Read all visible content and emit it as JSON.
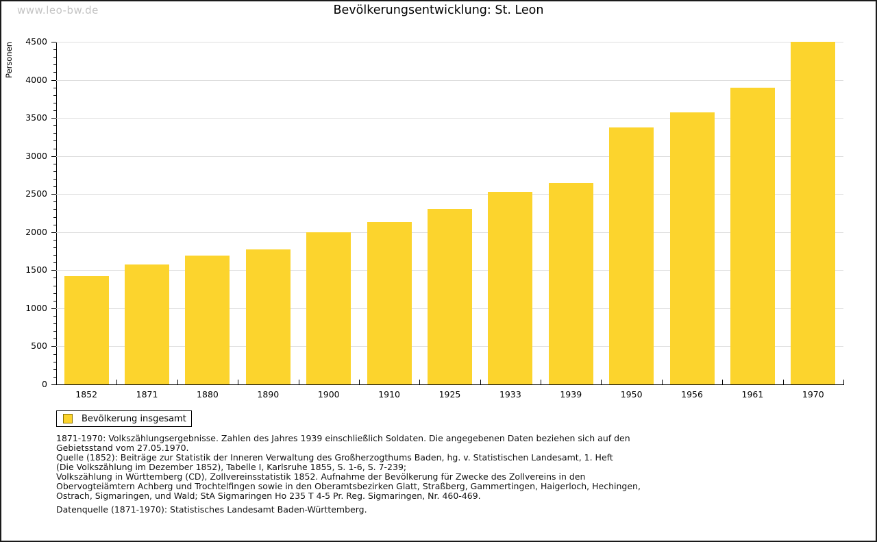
{
  "watermark": "www.leo-bw.de",
  "title": "Bevölkerungsentwicklung: St. Leon",
  "chart_data": {
    "type": "bar",
    "title": "Bevölkerungsentwicklung: St. Leon",
    "xlabel": "",
    "ylabel": "Personen",
    "categories": [
      "1852",
      "1871",
      "1880",
      "1890",
      "1900",
      "1910",
      "1925",
      "1933",
      "1939",
      "1950",
      "1956",
      "1961",
      "1970"
    ],
    "values": [
      1420,
      1575,
      1690,
      1775,
      2000,
      2130,
      2300,
      2530,
      2650,
      3375,
      3570,
      3900,
      4500
    ],
    "ylim": [
      0,
      4500
    ],
    "ytick_step": 500,
    "minor_tick_step": 100,
    "grid": true,
    "legend_position": "bottom-left",
    "series_name": "Bevölkerung insgesamt"
  },
  "colors": {
    "bar": "#FCD42D",
    "bar_border": "#8B7300",
    "grid": "#DDDDDD",
    "watermark": "#C3C3C3"
  },
  "legend": {
    "label": "Bevölkerung insgesamt"
  },
  "footer": {
    "lines": [
      "1871-1970: Volkszählungsergebnisse. Zahlen des Jahres 1939 einschließlich Soldaten. Die angegebenen Daten beziehen sich auf den",
      "Gebietsstand vom 27.05.1970.",
      "Quelle (1852): Beiträge zur Statistik der Inneren Verwaltung des Großherzogthums Baden, hg. v. Statistischen Landesamt, 1. Heft",
      "(Die Volkszählung im Dezember 1852), Tabelle I, Karlsruhe 1855, S. 1-6, S. 7-239;",
      "Volkszählung in Württemberg (CD), Zollvereinsstatistik 1852. Aufnahme der Bevölkerung für Zwecke des Zollvereins in den",
      "Obervogteiämtern Achberg und Trochtelfingen sowie in den Oberamtsbezirken Glatt, Straßberg, Gammertingen, Haigerloch, Hechingen,",
      "Ostrach, Sigmaringen, und Wald; StA Sigmaringen Ho 235 T 4-5 Pr. Reg. Sigmaringen, Nr. 460-469."
    ],
    "datasource": "Datenquelle (1871-1970): Statistisches Landesamt Baden-Württemberg."
  }
}
